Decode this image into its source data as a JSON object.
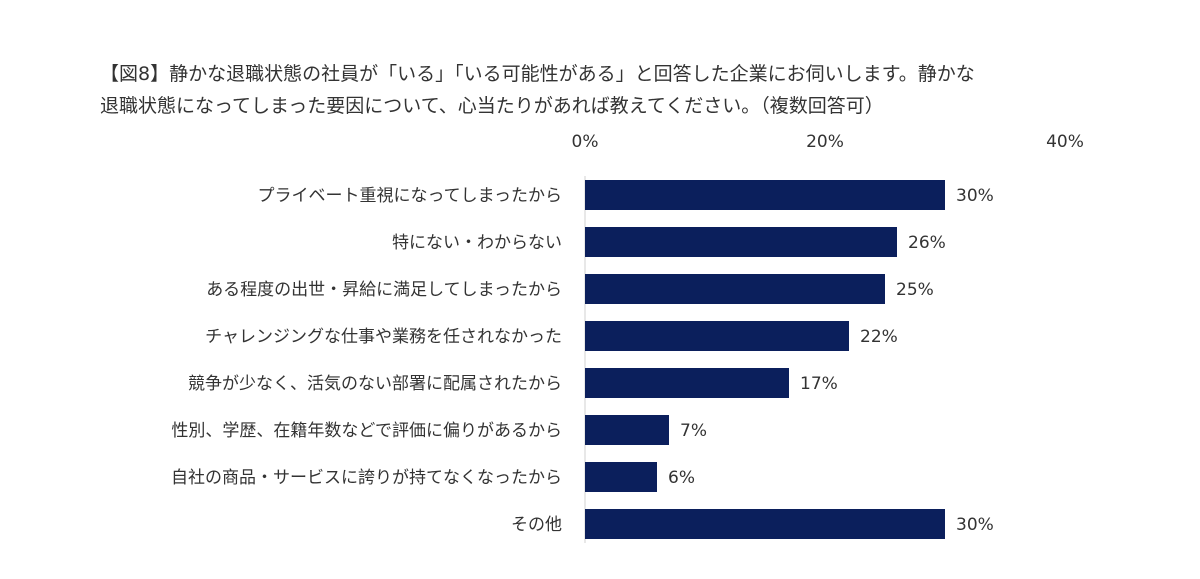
{
  "title_lines": [
    "【図8】静かな退職状態の社員が「いる」「いる可能性がある」と回答した企業にお伺いします。静かな",
    "退職状態になってしまった要因について、心当たりがあれば教えてください。（複数回答可）"
  ],
  "chart_data": {
    "type": "bar",
    "orientation": "horizontal",
    "categories": [
      "プライベート重視になってしまったから",
      "特にない・わからない",
      "ある程度の出世・昇給に満足してしまったから",
      "チャレンジングな仕事や業務を任されなかった",
      "競争が少なく、活気のない部署に配属されたから",
      "性別、学歴、在籍年数などで評価に偏りがあるから",
      "自社の商品・サービスに誇りが持てなくなったから",
      "その他"
    ],
    "values": [
      30,
      26,
      25,
      22,
      17,
      7,
      6,
      30
    ],
    "value_labels": [
      "30%",
      "26%",
      "25%",
      "22%",
      "17%",
      "7%",
      "6%",
      "30%"
    ],
    "xlim": [
      0,
      40
    ],
    "x_ticks": [
      0,
      20,
      40
    ],
    "x_tick_labels": [
      "0%",
      "20%",
      "40%"
    ],
    "x_axis_position": "top",
    "grid": false,
    "legend": "none",
    "bar_color": "#0B1F5C"
  }
}
